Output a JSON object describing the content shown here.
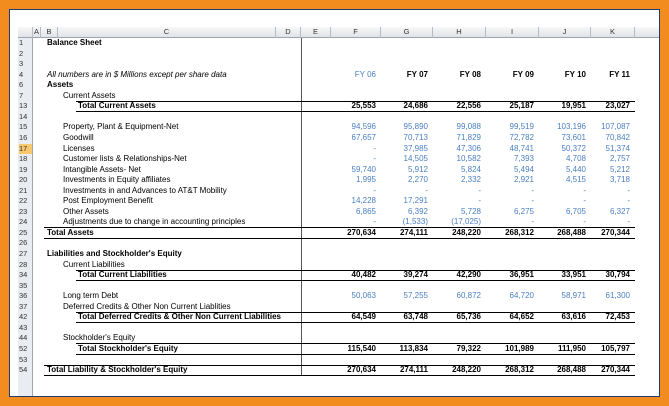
{
  "sheet": {
    "column_headers": [
      "A",
      "B",
      "C",
      "D",
      "E",
      "F",
      "G",
      "H",
      "I",
      "J",
      "K"
    ],
    "rows": [
      {
        "number": 1,
        "label": "Balance Sheet"
      },
      {
        "number": 2
      },
      {
        "number": 3
      },
      {
        "number": 4,
        "label": "All numbers are in $ Millions except per share data",
        "values": [
          "FY 06",
          "FY 07",
          "FY 08",
          "FY 09",
          "FY 10",
          "FY 11"
        ]
      },
      {
        "number": 6,
        "label": "Assets"
      },
      {
        "number": 7,
        "label": "Current Assets"
      },
      {
        "number": 13,
        "label": "Total Current Assets",
        "values": [
          "25,553",
          "24,686",
          "22,556",
          "25,187",
          "19,951",
          "23,027"
        ]
      },
      {
        "number": 14
      },
      {
        "number": 15,
        "label": "Property, Plant & Equipment-Net",
        "values": [
          "94,596",
          "95,890",
          "99,088",
          "99,519",
          "103,196",
          "107,087"
        ]
      },
      {
        "number": 16,
        "label": "Goodwill",
        "values": [
          "67,657",
          "70,713",
          "71,829",
          "72,782",
          "73,601",
          "70,842"
        ]
      },
      {
        "number": 17,
        "label": "Licenses",
        "values": [
          "-",
          "37,985",
          "47,306",
          "48,741",
          "50,372",
          "51,374"
        ]
      },
      {
        "number": 18,
        "label": "Customer lists & Relationships-Net",
        "values": [
          "-",
          "14,505",
          "10,582",
          "7,393",
          "4,708",
          "2,757"
        ]
      },
      {
        "number": 19,
        "label": "Intangible Assets- Net",
        "values": [
          "59,740",
          "5,912",
          "5,824",
          "5,494",
          "5,440",
          "5,212"
        ]
      },
      {
        "number": 20,
        "label": "Investments in Equity affiliates",
        "values": [
          "1,995",
          "2,270",
          "2,332",
          "2,921",
          "4,515",
          "3,718"
        ]
      },
      {
        "number": 21,
        "label": "Investments in and Advances to AT&T Mobility",
        "values": [
          "-",
          "-",
          "-",
          "-",
          "-",
          "-"
        ]
      },
      {
        "number": 22,
        "label": "Post Employment Benefit",
        "values": [
          "14,228",
          "17,291",
          "-",
          "-",
          "-",
          "-"
        ]
      },
      {
        "number": 23,
        "label": "Other Assets",
        "values": [
          "6,865",
          "6,392",
          "5,728",
          "6,275",
          "6,705",
          "6,327"
        ]
      },
      {
        "number": 24,
        "label": "Adjustments due to change in accounting principles",
        "values": [
          "-",
          "(1,533)",
          "(17,025)",
          "-",
          "-",
          "-"
        ]
      },
      {
        "number": 25,
        "label": "Total Assets",
        "values": [
          "270,634",
          "274,111",
          "248,220",
          "268,312",
          "268,488",
          "270,344"
        ]
      },
      {
        "number": 26
      },
      {
        "number": 27,
        "label": "Liabilities and Stockholder's Equity"
      },
      {
        "number": 28,
        "label": "Current Liabilities"
      },
      {
        "number": 34,
        "label": "Total Current Liabilities",
        "values": [
          "40,482",
          "39,274",
          "42,290",
          "36,951",
          "33,951",
          "30,794"
        ]
      },
      {
        "number": 35
      },
      {
        "number": 36,
        "label": "Long term Debt",
        "values": [
          "50,063",
          "57,255",
          "60,872",
          "64,720",
          "58,971",
          "61,300"
        ]
      },
      {
        "number": 37,
        "label": "Deferred Credits & Other Non Current Liablities"
      },
      {
        "number": 42,
        "label": "Total Deferred Credits & Other Non Current Liabilities",
        "values": [
          "64,549",
          "63,748",
          "65,736",
          "64,652",
          "63,616",
          "72,453"
        ]
      },
      {
        "number": 43
      },
      {
        "number": 44,
        "label": "Stockholder's Equity"
      },
      {
        "number": 52,
        "label": "Total Stockholder's Equity",
        "values": [
          "115,540",
          "113,834",
          "79,322",
          "101,989",
          "111,950",
          "105,797"
        ]
      },
      {
        "number": 53
      },
      {
        "number": 54,
        "label": "Total Liability & Stockholder's Equity",
        "values": [
          "270,634",
          "274,111",
          "248,220",
          "268,312",
          "268,488",
          "270,344"
        ]
      }
    ]
  }
}
